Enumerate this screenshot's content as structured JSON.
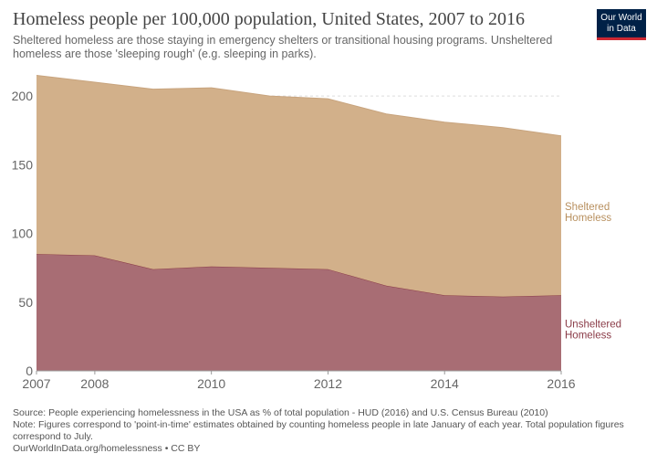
{
  "title": "Homeless people per 100,000 population, United States, 2007 to 2016",
  "subtitle": "Sheltered homeless are those staying in emergency shelters or transitional housing programs. Unsheltered homeless are those 'sleeping rough' (e.g. sleeping in parks).",
  "logo": {
    "line1": "Our World",
    "line2": "in Data",
    "background": "#002147",
    "accent": "#cd2832"
  },
  "footer": {
    "source": "Source: People experiencing homelessness in the USA as % of total population - HUD (2016) and U.S. Census Bureau (2010)",
    "note": "Note: Figures correspond to 'point-in-time' estimates obtained by counting homeless people in late January of each year. Total population figures correspond to July.",
    "url": "OurWorldInData.org/homelessness • CC BY"
  },
  "chart_data": {
    "type": "area",
    "stacked": true,
    "x": [
      2007,
      2008,
      2009,
      2010,
      2011,
      2012,
      2013,
      2014,
      2015,
      2016
    ],
    "xticks": [
      "2007",
      "2008",
      "2010",
      "2012",
      "2014",
      "2016"
    ],
    "yticks": [
      "0",
      "50",
      "100",
      "150",
      "200"
    ],
    "ylim": [
      0,
      220
    ],
    "grid": true,
    "series": [
      {
        "name": "Unsheltered Homeless",
        "label_lines": [
          "Unsheltered",
          "Homeless"
        ],
        "color": "#a86d74",
        "edge": "#8a3b47",
        "label_color": "#8a3b47",
        "values": [
          85,
          84,
          74,
          76,
          75,
          74,
          62,
          55,
          54,
          55
        ]
      },
      {
        "name": "Sheltered Homeless",
        "label_lines": [
          "Sheltered",
          "Homeless"
        ],
        "color": "#d2b08a",
        "edge": "#c8a47e",
        "label_color": "#b8905f",
        "values": [
          130,
          126,
          131,
          130,
          125,
          124,
          125,
          126,
          123,
          116
        ]
      }
    ]
  }
}
